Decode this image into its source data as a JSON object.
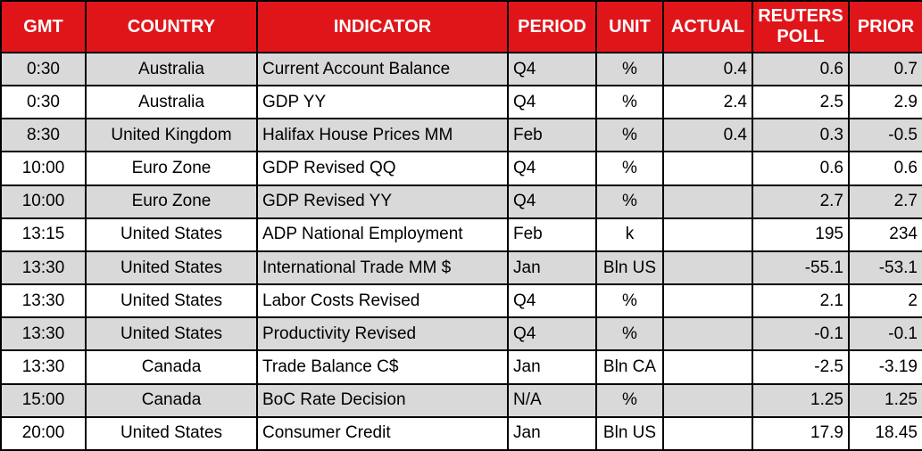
{
  "table": {
    "name": "economic-calendar",
    "columns": [
      {
        "key": "gmt",
        "label": "GMT",
        "align": "center"
      },
      {
        "key": "country",
        "label": "COUNTRY",
        "align": "center"
      },
      {
        "key": "indicator",
        "label": "INDICATOR",
        "align": "left"
      },
      {
        "key": "period",
        "label": "PERIOD",
        "align": "left"
      },
      {
        "key": "unit",
        "label": "UNIT",
        "align": "center"
      },
      {
        "key": "actual",
        "label": "ACTUAL",
        "align": "right"
      },
      {
        "key": "reuters-poll",
        "label": "REUTERS POLL",
        "align": "right"
      },
      {
        "key": "prior",
        "label": "PRIOR",
        "align": "right"
      }
    ],
    "rows": [
      [
        "0:30",
        "Australia",
        "Current Account Balance",
        "Q4",
        "%",
        "0.4",
        "0.6",
        "0.7"
      ],
      [
        "0:30",
        "Australia",
        "GDP YY",
        "Q4",
        "%",
        "2.4",
        "2.5",
        "2.9"
      ],
      [
        "8:30",
        "United Kingdom",
        "Halifax House Prices MM",
        "Feb",
        "%",
        "0.4",
        "0.3",
        "-0.5"
      ],
      [
        "10:00",
        "Euro Zone",
        "GDP Revised QQ",
        "Q4",
        "%",
        "",
        "0.6",
        "0.6"
      ],
      [
        "10:00",
        "Euro Zone",
        "GDP Revised YY",
        "Q4",
        "%",
        "",
        "2.7",
        "2.7"
      ],
      [
        "13:15",
        "United States",
        "ADP National Employment",
        "Feb",
        "k",
        "",
        "195",
        "234"
      ],
      [
        "13:30",
        "United States",
        "International Trade MM $",
        "Jan",
        "Bln US",
        "",
        "-55.1",
        "-53.1"
      ],
      [
        "13:30",
        "United States",
        "Labor Costs Revised",
        "Q4",
        "%",
        "",
        "2.1",
        "2"
      ],
      [
        "13:30",
        "United States",
        "Productivity Revised",
        "Q4",
        "%",
        "",
        "-0.1",
        "-0.1"
      ],
      [
        "13:30",
        "Canada",
        "Trade Balance C$",
        "Jan",
        "Bln CA",
        "",
        "-2.5",
        "-3.19"
      ],
      [
        "15:00",
        "Canada",
        "BoC Rate Decision",
        "N/A",
        "%",
        "",
        "1.25",
        "1.25"
      ],
      [
        "20:00",
        "United States",
        "Consumer Credit",
        "Jan",
        "Bln US",
        "",
        "17.9",
        "18.45"
      ]
    ],
    "colors": {
      "header_bg": "#e0151a",
      "header_text": "#ffffff",
      "row_bg": "#ffffff",
      "row_alt_bg": "#d9d9d9",
      "border": "#000000",
      "text": "#000000"
    }
  },
  "chart_data": {
    "type": "table",
    "title": "Economic Calendar",
    "columns": [
      "GMT",
      "COUNTRY",
      "INDICATOR",
      "PERIOD",
      "UNIT",
      "ACTUAL",
      "REUTERS POLL",
      "PRIOR"
    ],
    "rows": [
      [
        "0:30",
        "Australia",
        "Current Account Balance",
        "Q4",
        "%",
        0.4,
        0.6,
        0.7
      ],
      [
        "0:30",
        "Australia",
        "GDP YY",
        "Q4",
        "%",
        2.4,
        2.5,
        2.9
      ],
      [
        "8:30",
        "United Kingdom",
        "Halifax House Prices MM",
        "Feb",
        "%",
        0.4,
        0.3,
        -0.5
      ],
      [
        "10:00",
        "Euro Zone",
        "GDP Revised QQ",
        "Q4",
        "%",
        null,
        0.6,
        0.6
      ],
      [
        "10:00",
        "Euro Zone",
        "GDP Revised YY",
        "Q4",
        "%",
        null,
        2.7,
        2.7
      ],
      [
        "13:15",
        "United States",
        "ADP National Employment",
        "Feb",
        "k",
        null,
        195,
        234
      ],
      [
        "13:30",
        "United States",
        "International Trade MM $",
        "Jan",
        "Bln US",
        null,
        -55.1,
        -53.1
      ],
      [
        "13:30",
        "United States",
        "Labor Costs Revised",
        "Q4",
        "%",
        null,
        2.1,
        2
      ],
      [
        "13:30",
        "United States",
        "Productivity Revised",
        "Q4",
        "%",
        null,
        -0.1,
        -0.1
      ],
      [
        "13:30",
        "Canada",
        "Trade Balance C$",
        "Jan",
        "Bln CA",
        null,
        -2.5,
        -3.19
      ],
      [
        "15:00",
        "Canada",
        "BoC Rate Decision",
        "N/A",
        "%",
        null,
        1.25,
        1.25
      ],
      [
        "20:00",
        "United States",
        "Consumer Credit",
        "Jan",
        "Bln US",
        null,
        17.9,
        18.45
      ]
    ]
  }
}
